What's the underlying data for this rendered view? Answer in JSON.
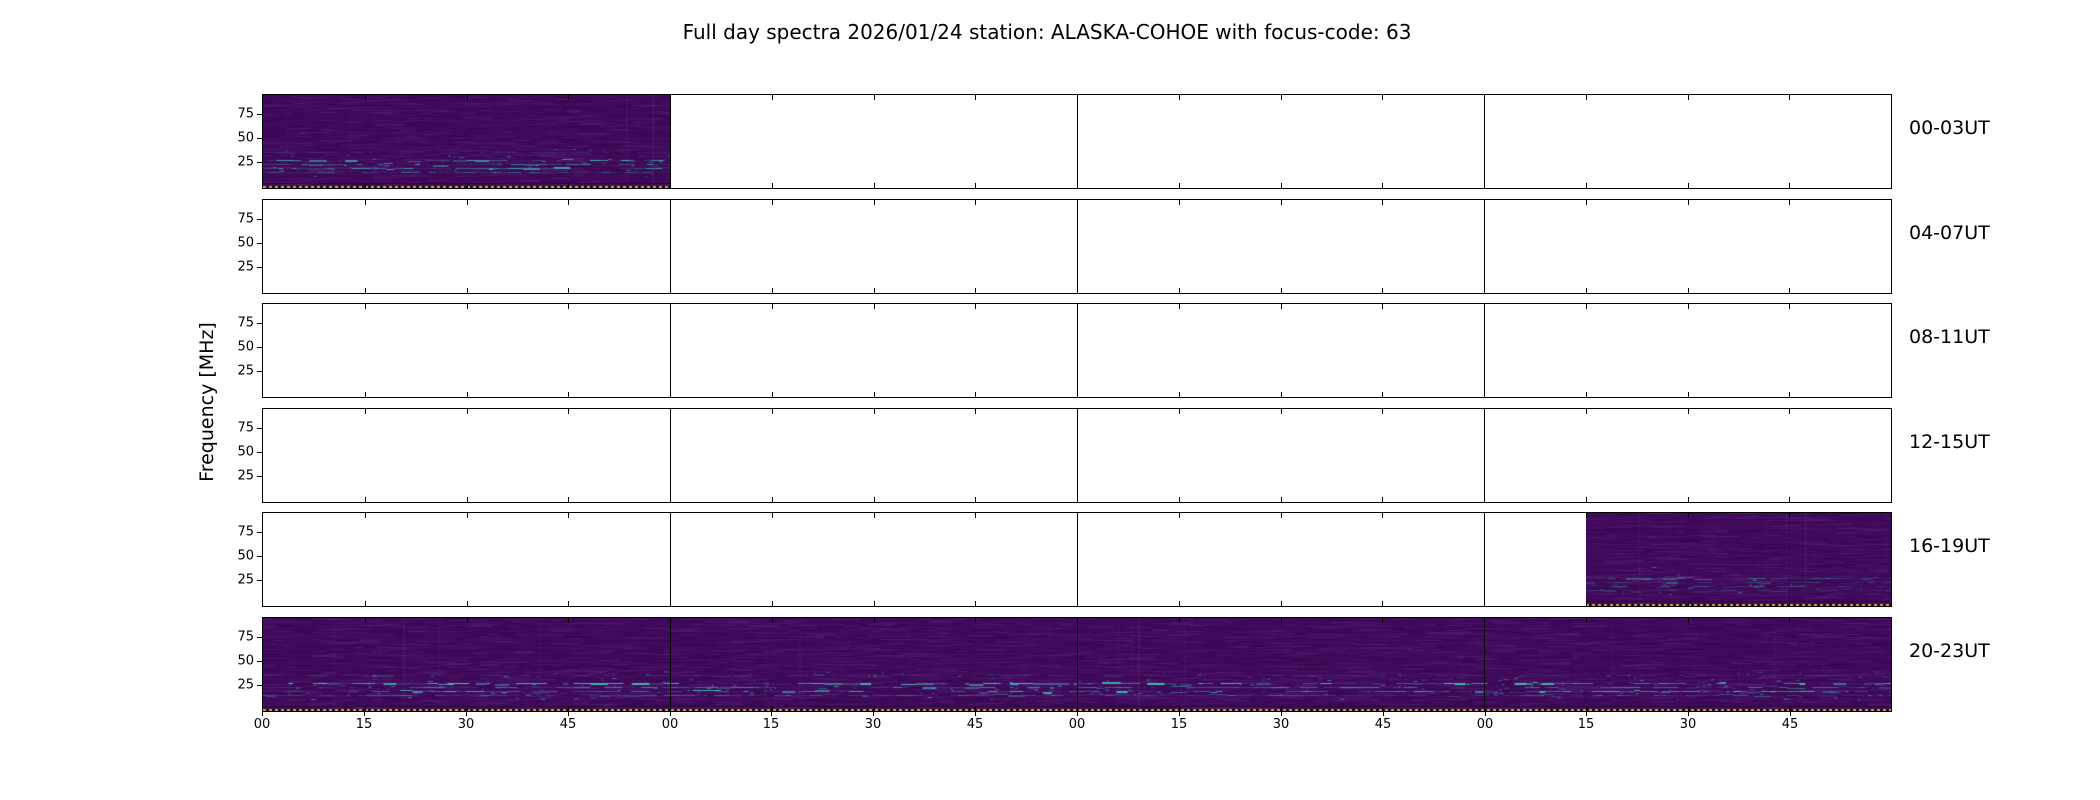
{
  "chart_data": {
    "type": "heatmap",
    "title": "Full day spectra 2026/01/24 station: ALASKA-COHOE with focus-code: 63",
    "ylabel": "Frequency [MHz]",
    "station": "ALASKA-COHOE",
    "date": "2026/01/24",
    "focus_code": "63",
    "y_tick_labels": [
      "75",
      "50",
      "25"
    ],
    "x_tick_labels": [
      "00",
      "15",
      "30",
      "45",
      "00",
      "15",
      "30",
      "45",
      "00",
      "15",
      "30",
      "45",
      "00",
      "15",
      "30",
      "45"
    ],
    "minutes_per_tick": 15,
    "hours_per_panel": 4,
    "panels": [
      {
        "label": "00-03UT",
        "coverage": [
          {
            "start": 0.0,
            "end": 0.25
          }
        ],
        "gain": 0.9
      },
      {
        "label": "04-07UT",
        "coverage": [],
        "gain": 0
      },
      {
        "label": "08-11UT",
        "coverage": [],
        "gain": 0
      },
      {
        "label": "12-15UT",
        "coverage": [],
        "gain": 0
      },
      {
        "label": "16-19UT",
        "coverage": [
          {
            "start": 0.8125,
            "end": 1.0
          }
        ],
        "gain": 0.55
      },
      {
        "label": "20-23UT",
        "coverage": [
          {
            "start": 0.0,
            "end": 1.0
          }
        ],
        "gain": 1.0
      }
    ],
    "colors": {
      "background": "#ffffff",
      "axes": "#000000",
      "spectrogram_base": "#410a5c",
      "spectrogram_band": "62,200,185",
      "bottom_dash": "#e2a23b"
    },
    "texture_bands": [
      {
        "y": 0.695,
        "strength": 0.95,
        "thick": 0.25
      },
      {
        "y": 0.74,
        "strength": 0.65,
        "thick": 0.15
      },
      {
        "y": 0.785,
        "strength": 0.85,
        "thick": 0.2
      },
      {
        "y": 0.83,
        "strength": 0.5,
        "thick": 0.1
      },
      {
        "y": 0.615,
        "strength": 0.22,
        "thick": 0.05
      }
    ]
  }
}
